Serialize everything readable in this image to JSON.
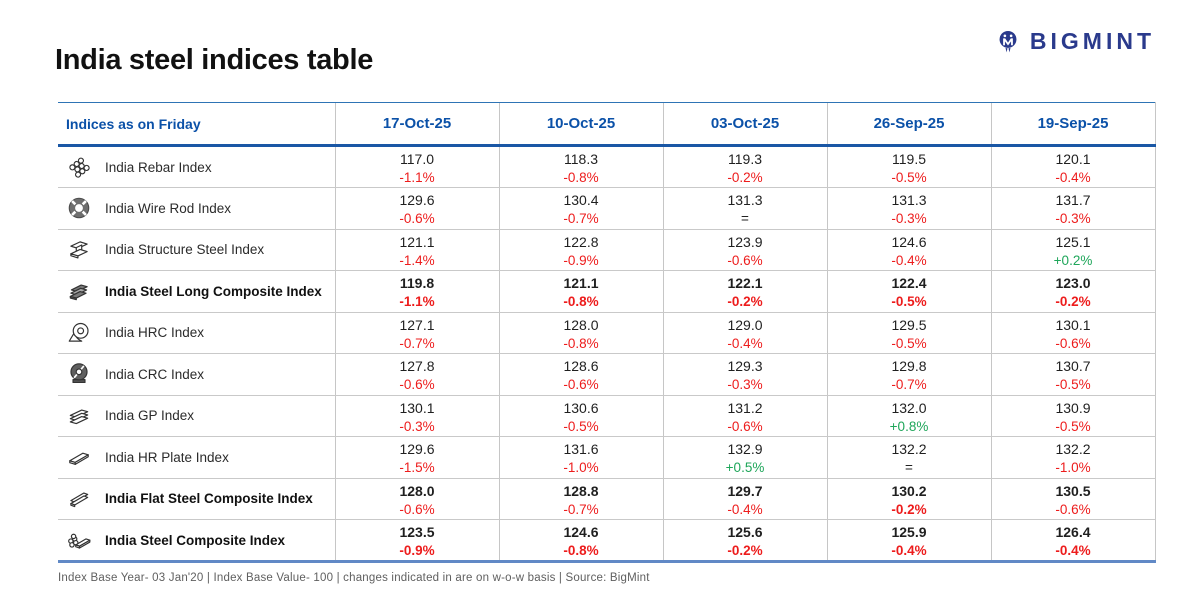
{
  "page": {
    "title": "India steel indices table",
    "brand": {
      "name": "BIGMINT",
      "icon": "bigmint-logo",
      "color": "#2a3a8c"
    },
    "footer": "Index Base Year- 03 Jan'20 | Index Base Value- 100 | changes indicated in are on w-o-w basis | Source: BigMint"
  },
  "table": {
    "header": {
      "label": "Indices as on Friday",
      "dates": [
        "17-Oct-25",
        "10-Oct-25",
        "03-Oct-25",
        "26-Sep-25",
        "19-Sep-25"
      ]
    },
    "colors": {
      "header_text": "#0b51a8",
      "header_rule_top": "#2e74b5",
      "header_rule_bottom": "#1a57a5",
      "table_bottom_rule": "#6189c6",
      "negative": "#ed1c1c",
      "positive": "#1fa65a",
      "flat": "#222222"
    },
    "rows": [
      {
        "icon": "rebar-icon",
        "label": "India Rebar Index",
        "label_bold": false,
        "cells": [
          {
            "v": "117.0",
            "c": "-1.1%",
            "dir": "down"
          },
          {
            "v": "118.3",
            "c": "-0.8%",
            "dir": "down"
          },
          {
            "v": "119.3",
            "c": "-0.2%",
            "dir": "down"
          },
          {
            "v": "119.5",
            "c": "-0.5%",
            "dir": "down"
          },
          {
            "v": "120.1",
            "c": "-0.4%",
            "dir": "down"
          }
        ]
      },
      {
        "icon": "wire-rod-icon",
        "label": "India Wire Rod Index",
        "label_bold": false,
        "cells": [
          {
            "v": "129.6",
            "c": "-0.6%",
            "dir": "down"
          },
          {
            "v": "130.4",
            "c": "-0.7%",
            "dir": "down"
          },
          {
            "v": "131.3",
            "c": "=",
            "dir": "flat"
          },
          {
            "v": "131.3",
            "c": "-0.3%",
            "dir": "down"
          },
          {
            "v": "131.7",
            "c": "-0.3%",
            "dir": "down"
          }
        ]
      },
      {
        "icon": "structure-steel-icon",
        "label": "India Structure Steel Index",
        "label_bold": false,
        "cells": [
          {
            "v": "121.1",
            "c": "-1.4%",
            "dir": "down"
          },
          {
            "v": "122.8",
            "c": "-0.9%",
            "dir": "down"
          },
          {
            "v": "123.9",
            "c": "-0.6%",
            "dir": "down"
          },
          {
            "v": "124.6",
            "c": "-0.4%",
            "dir": "down"
          },
          {
            "v": "125.1",
            "c": "+0.2%",
            "dir": "up"
          }
        ]
      },
      {
        "icon": "steel-long-composite-icon",
        "label": "India Steel Long Composite Index",
        "label_bold": true,
        "cells": [
          {
            "v": "119.8",
            "c": "-1.1%",
            "dir": "down",
            "vb": true,
            "cb": true
          },
          {
            "v": "121.1",
            "c": "-0.8%",
            "dir": "down",
            "vb": true,
            "cb": true
          },
          {
            "v": "122.1",
            "c": "-0.2%",
            "dir": "down",
            "vb": true,
            "cb": true
          },
          {
            "v": "122.4",
            "c": "-0.5%",
            "dir": "down",
            "vb": true,
            "cb": true
          },
          {
            "v": "123.0",
            "c": "-0.2%",
            "dir": "down",
            "vb": true,
            "cb": true
          }
        ]
      },
      {
        "icon": "hrc-coil-icon",
        "label": "India HRC Index",
        "label_bold": false,
        "cells": [
          {
            "v": "127.1",
            "c": "-0.7%",
            "dir": "down"
          },
          {
            "v": "128.0",
            "c": "-0.8%",
            "dir": "down"
          },
          {
            "v": "129.0",
            "c": "-0.4%",
            "dir": "down"
          },
          {
            "v": "129.5",
            "c": "-0.5%",
            "dir": "down"
          },
          {
            "v": "130.1",
            "c": "-0.6%",
            "dir": "down"
          }
        ]
      },
      {
        "icon": "crc-coil-icon",
        "label": "India CRC Index",
        "label_bold": false,
        "cells": [
          {
            "v": "127.8",
            "c": "-0.6%",
            "dir": "down"
          },
          {
            "v": "128.6",
            "c": "-0.6%",
            "dir": "down"
          },
          {
            "v": "129.3",
            "c": "-0.3%",
            "dir": "down"
          },
          {
            "v": "129.8",
            "c": "-0.7%",
            "dir": "down"
          },
          {
            "v": "130.7",
            "c": "-0.5%",
            "dir": "down"
          }
        ]
      },
      {
        "icon": "gp-sheets-icon",
        "label": "India GP Index",
        "label_bold": false,
        "cells": [
          {
            "v": "130.1",
            "c": "-0.3%",
            "dir": "down"
          },
          {
            "v": "130.6",
            "c": "-0.5%",
            "dir": "down"
          },
          {
            "v": "131.2",
            "c": "-0.6%",
            "dir": "down"
          },
          {
            "v": "132.0",
            "c": "+0.8%",
            "dir": "up"
          },
          {
            "v": "130.9",
            "c": "-0.5%",
            "dir": "down"
          }
        ]
      },
      {
        "icon": "hr-plate-icon",
        "label": "India HR Plate Index",
        "label_bold": false,
        "cells": [
          {
            "v": "129.6",
            "c": "-1.5%",
            "dir": "down"
          },
          {
            "v": "131.6",
            "c": "-1.0%",
            "dir": "down"
          },
          {
            "v": "132.9",
            "c": "+0.5%",
            "dir": "up"
          },
          {
            "v": "132.2",
            "c": "=",
            "dir": "flat"
          },
          {
            "v": "132.2",
            "c": "-1.0%",
            "dir": "down"
          }
        ]
      },
      {
        "icon": "flat-steel-composite-icon",
        "label": "India Flat Steel Composite Index",
        "label_bold": true,
        "cells": [
          {
            "v": "128.0",
            "c": "-0.6%",
            "dir": "down",
            "vb": true
          },
          {
            "v": "128.8",
            "c": "-0.7%",
            "dir": "down",
            "vb": true
          },
          {
            "v": "129.7",
            "c": "-0.4%",
            "dir": "down",
            "vb": true
          },
          {
            "v": "130.2",
            "c": "-0.2%",
            "dir": "down",
            "vb": true,
            "cb": true
          },
          {
            "v": "130.5",
            "c": "-0.6%",
            "dir": "down",
            "vb": true
          }
        ]
      },
      {
        "icon": "steel-composite-icon",
        "label": "India Steel Composite Index",
        "label_bold": true,
        "cells": [
          {
            "v": "123.5",
            "c": "-0.9%",
            "dir": "down",
            "vb": true,
            "cb": true
          },
          {
            "v": "124.6",
            "c": "-0.8%",
            "dir": "down",
            "vb": true,
            "cb": true
          },
          {
            "v": "125.6",
            "c": "-0.2%",
            "dir": "down",
            "vb": true,
            "cb": true
          },
          {
            "v": "125.9",
            "c": "-0.4%",
            "dir": "down",
            "vb": true,
            "cb": true
          },
          {
            "v": "126.4",
            "c": "-0.4%",
            "dir": "down",
            "vb": true,
            "cb": true
          }
        ]
      }
    ]
  }
}
